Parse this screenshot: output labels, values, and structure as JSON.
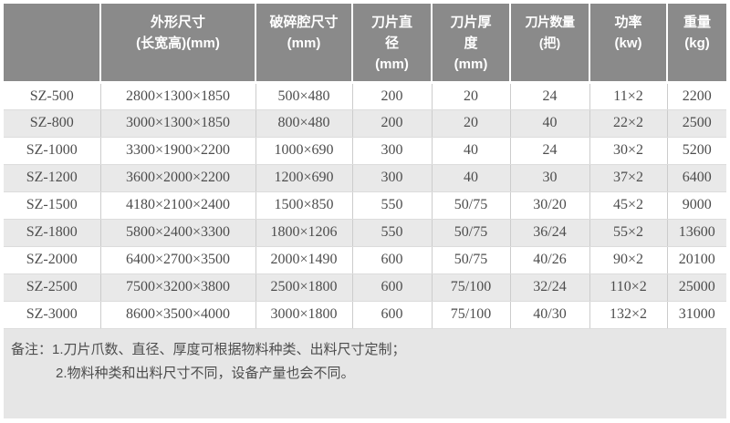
{
  "colors": {
    "header_bg": "#8a8a8a",
    "header_text": "#ffffff",
    "row_bg": "#ffffff",
    "row_alt_bg": "#e9e9e9",
    "body_text": "#4d4d4d",
    "notes_bg": "#e6e6e6",
    "border": "#cccccc"
  },
  "header": {
    "columns": [
      {
        "label": "",
        "unit": ""
      },
      {
        "label": "外形尺寸",
        "unit": "(长宽高)(mm)"
      },
      {
        "label": "破碎腔尺寸",
        "unit": "(mm)"
      },
      {
        "label": "刀片直径",
        "unit": "(mm)"
      },
      {
        "label": "刀片厚度",
        "unit": "(mm)"
      },
      {
        "label": "刀片数量",
        "unit": "(把)"
      },
      {
        "label": "功率",
        "unit": "(kw)"
      },
      {
        "label": "重量",
        "unit": "(kg)"
      }
    ]
  },
  "rows": [
    {
      "model": "SZ-500",
      "dims": "2800×1300×1850",
      "chamber": "500×480",
      "blade_dia": "200",
      "blade_thick": "20",
      "blade_count": "24",
      "power": "11×2",
      "weight": "2200"
    },
    {
      "model": "SZ-800",
      "dims": "3000×1300×1850",
      "chamber": "800×480",
      "blade_dia": "200",
      "blade_thick": "20",
      "blade_count": "40",
      "power": "22×2",
      "weight": "2500"
    },
    {
      "model": "SZ-1000",
      "dims": "3300×1900×2200",
      "chamber": "1000×690",
      "blade_dia": "300",
      "blade_thick": "40",
      "blade_count": "24",
      "power": "30×2",
      "weight": "5200"
    },
    {
      "model": "SZ-1200",
      "dims": "3600×2000×2200",
      "chamber": "1200×690",
      "blade_dia": "300",
      "blade_thick": "40",
      "blade_count": "30",
      "power": "37×2",
      "weight": "6400"
    },
    {
      "model": "SZ-1500",
      "dims": "4180×2100×2400",
      "chamber": "1500×850",
      "blade_dia": "550",
      "blade_thick": "50/75",
      "blade_count": "30/20",
      "power": "45×2",
      "weight": "9000"
    },
    {
      "model": "SZ-1800",
      "dims": "5800×2400×3300",
      "chamber": "1800×1206",
      "blade_dia": "550",
      "blade_thick": "50/75",
      "blade_count": "36/24",
      "power": "55×2",
      "weight": "13600"
    },
    {
      "model": "SZ-2000",
      "dims": "6400×2700×3500",
      "chamber": "2000×1490",
      "blade_dia": "600",
      "blade_thick": "50/75",
      "blade_count": "40/26",
      "power": "90×2",
      "weight": "20100"
    },
    {
      "model": "SZ-2500",
      "dims": "7500×3200×3800",
      "chamber": "2500×1800",
      "blade_dia": "600",
      "blade_thick": "75/100",
      "blade_count": "32/24",
      "power": "110×2",
      "weight": "25000"
    },
    {
      "model": "SZ-3000",
      "dims": "8600×3500×4000",
      "chamber": "3000×1800",
      "blade_dia": "600",
      "blade_thick": "75/100",
      "blade_count": "40/30",
      "power": "132×2",
      "weight": "31000"
    }
  ],
  "notes": {
    "line1": "备注：1.刀片爪数、直径、厚度可根据物料种类、出料尺寸定制；",
    "line2": "2.物料种类和出料尺寸不同，设备产量也会不同。"
  }
}
